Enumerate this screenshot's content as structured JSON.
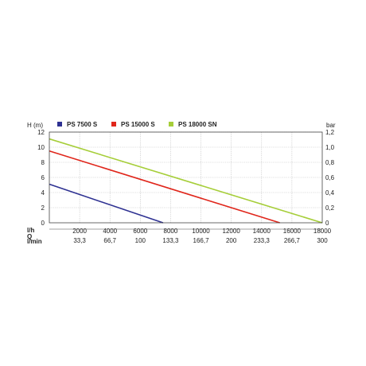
{
  "chart_data": {
    "type": "line",
    "left_axis_label": "H (m)",
    "right_axis_label": "bar",
    "left_ticks": [
      0,
      2,
      4,
      6,
      8,
      10,
      12
    ],
    "right_ticks": [
      "0",
      "0,2",
      "0,4",
      "0,6",
      "0,8",
      "1,0",
      "1,2"
    ],
    "ylim": [
      0,
      12
    ],
    "xlim": [
      0,
      18000
    ],
    "x_row_lh": {
      "label": "l/h",
      "ticks": [
        2000,
        4000,
        6000,
        8000,
        10000,
        12000,
        14000,
        16000,
        18000
      ]
    },
    "x_row_lmin": {
      "label": "l/min",
      "ticks": [
        "33,3",
        "66,7",
        "100",
        "133,3",
        "166,7",
        "200",
        "233,3",
        "266,7",
        "300"
      ]
    },
    "q_label": "Q",
    "grid": true,
    "legend_placement": "top",
    "series": [
      {
        "name": "PS 7500 S",
        "color": "#2e3192",
        "x": [
          0,
          7500
        ],
        "y": [
          5.1,
          0
        ]
      },
      {
        "name": "PS 15000 S",
        "color": "#e0261b",
        "x": [
          0,
          15200
        ],
        "y": [
          9.5,
          0
        ]
      },
      {
        "name": "PS 18000 SN",
        "color": "#a6ce39",
        "x": [
          0,
          18000
        ],
        "y": [
          11.1,
          0
        ]
      }
    ]
  }
}
